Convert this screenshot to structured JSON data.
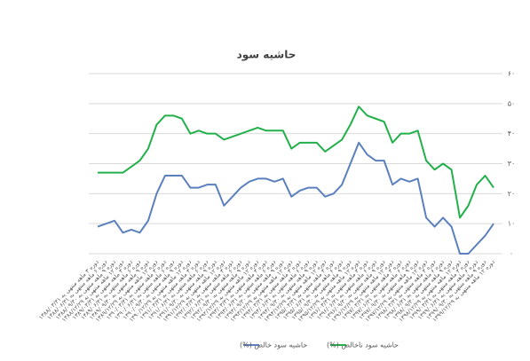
{
  "chart_data": {
    "type": "line",
    "title": "حاشیه سود",
    "categories": [
      "دوره ۳ ماهه منتهی به ۱۳۸۸/۰۳/۳۱",
      "دوره ۶ ماهه منتهی به ۱۳۸۸/۰۶/۳۱",
      "دوره ۹ ماهه منتهی به ۱۳۸۸/۰۹/۳۰",
      "دوره ۱۲ ماهه منتهی به ۱۳۸۸/۱۲/۲۹",
      "دوره ۳ ماهه منتهی به ۱۳۸۹/۰۳/۳۱",
      "دوره ۶ ماهه منتهی به ۱۳۸۹/۰۶/۳۱",
      "دوره ۹ ماهه منتهی به ۱۳۸۹/۰۹/۳۰",
      "دوره ۱۲ ماهه منتهی به ۱۳۸۹/۱۲/۲۹",
      "دوره ۳ ماهه منتهی به ۱۳۹۰/۰۳/۳۱",
      "دوره ۶ ماهه منتهی به ۱۳۹۰/۰۶/۳۱",
      "دوره ۹ ماهه منتهی به ۱۳۹۰/۰۹/۳۰",
      "دوره ۱۲ ماهه منتهی به ۱۳۹۰/۱۲/۲۹",
      "دوره ۳ ماهه منتهی به ۱۳۹۱/۰۳/۳۱",
      "دوره ۶ ماهه منتهی به ۱۳۹۱/۰۶/۳۱",
      "دوره ۹ ماهه منتهی به ۱۳۹۱/۰۹/۳۰",
      "دوره ۱۲ ماهه منتهی به ۱۳۹۱/۱۲/۲۹",
      "دوره ۳ ماهه منتهی به ۱۳۹۲/۰۳/۳۱",
      "دوره ۶ ماهه منتهی به ۱۳۹۲/۰۶/۳۱",
      "دوره ۹ ماهه منتهی به ۱۳۹۲/۰۹/۳۰",
      "دوره ۱۲ ماهه منتهی به ۱۳۹۲/۱۲/۲۹",
      "دوره ۳ ماهه منتهی به ۱۳۹۳/۰۳/۳۱",
      "دوره ۶ ماهه منتهی به ۱۳۹۳/۰۶/۳۱",
      "دوره ۹ ماهه منتهی به ۱۳۹۳/۰۹/۳۰",
      "دوره ۱۲ ماهه منتهی به ۱۳۹۳/۱۲/۲۹",
      "دوره ۳ ماهه منتهی به ۱۳۹۴/۰۳/۳۱",
      "دوره ۶ ماهه منتهی به ۱۳۹۴/۰۶/۳۱",
      "دوره ۹ ماهه منتهی به ۱۳۹۴/۰۹/۳۰",
      "دوره ۱۲ ماهه منتهی به ۱۳۹۴/۱۲/۲۹",
      "دوره ۳ ماهه منتهی به ۱۳۹۵/۰۳/۳۱",
      "دوره ۶ ماهه منتهی به ۱۳۹۵/۰۶/۳۱",
      "دوره ۹ ماهه منتهی به ۱۳۹۵/۰۹/۳۰",
      "دوره ۱۲ ماهه منتهی به ۱۳۹۵/۱۲/۲۹",
      "دوره ۳ ماهه منتهی به ۱۳۹۶/۰۳/۳۱",
      "دوره ۶ ماهه منتهی به ۱۳۹۶/۰۶/۳۱",
      "دوره ۹ ماهه منتهی به ۱۳۹۶/۰۹/۳۰",
      "دوره ۱۲ ماهه منتهی به ۱۳۹۶/۱۲/۲۹",
      "دوره ۳ ماهه منتهی به ۱۳۹۷/۰۳/۳۱",
      "دوره ۶ ماهه منتهی به ۱۳۹۷/۰۶/۳۱",
      "دوره ۹ ماهه منتهی به ۱۳۹۷/۰۹/۳۰",
      "دوره ۱۲ ماهه منتهی به ۱۳۹۷/۱۲/۲۹",
      "دوره ۳ ماهه منتهی به ۱۳۹۸/۰۳/۳۱",
      "دوره ۶ ماهه منتهی به ۱۳۹۸/۰۶/۳۱",
      "دوره ۹ ماهه منتهی به ۱۳۹۸/۰۹/۳۰",
      "دوره ۱۲ ماهه منتهی به ۱۳۹۸/۱۲/۲۹",
      "دوره ۳ ماهه منتهی به ۱۳۹۹/۰۳/۳۱",
      "دوره ۶ ماهه منتهی به ۱۳۹۹/۰۶/۳۱",
      "دوره ۹ ماهه منتهی به ۱۳۹۹/۰۹/۳۰",
      "دوره ۱۲ ماهه منتهی به ۱۳۹۹/۱۲/۲۹"
    ],
    "series": [
      {
        "name": "حاشیه سود خالص (%)",
        "color": "#5b80bd",
        "values": [
          9,
          10,
          11,
          7,
          8,
          7,
          11,
          20,
          26,
          26,
          26,
          22,
          22,
          23,
          23,
          16,
          19,
          22,
          24,
          25,
          25,
          24,
          25,
          19,
          21,
          22,
          22,
          19,
          20,
          23,
          30,
          37,
          33,
          31,
          31,
          23,
          25,
          24,
          25,
          12,
          9,
          12,
          9,
          0,
          0,
          3,
          6,
          10
        ]
      },
      {
        "name": "حاشیه سود ناخالص (%)",
        "color": "#22b04b",
        "values": [
          27,
          27,
          27,
          27,
          29,
          31,
          35,
          43,
          46,
          46,
          45,
          40,
          41,
          40,
          40,
          38,
          39,
          40,
          41,
          42,
          41,
          41,
          41,
          35,
          37,
          37,
          37,
          34,
          36,
          38,
          43,
          49,
          46,
          45,
          44,
          37,
          40,
          40,
          41,
          31,
          28,
          30,
          28,
          12,
          16,
          23,
          26,
          22
        ]
      }
    ],
    "ylim": [
      0,
      60
    ],
    "yticks": [
      {
        "value": 0,
        "label": "۰"
      },
      {
        "value": 10,
        "label": "۱۰"
      },
      {
        "value": 20,
        "label": "۲۰"
      },
      {
        "value": 30,
        "label": "۳۰"
      },
      {
        "value": 40,
        "label": "۴۰"
      },
      {
        "value": 50,
        "label": "۵۰"
      },
      {
        "value": 60,
        "label": "۶۰"
      }
    ],
    "grid": true,
    "legend": "bottom"
  }
}
